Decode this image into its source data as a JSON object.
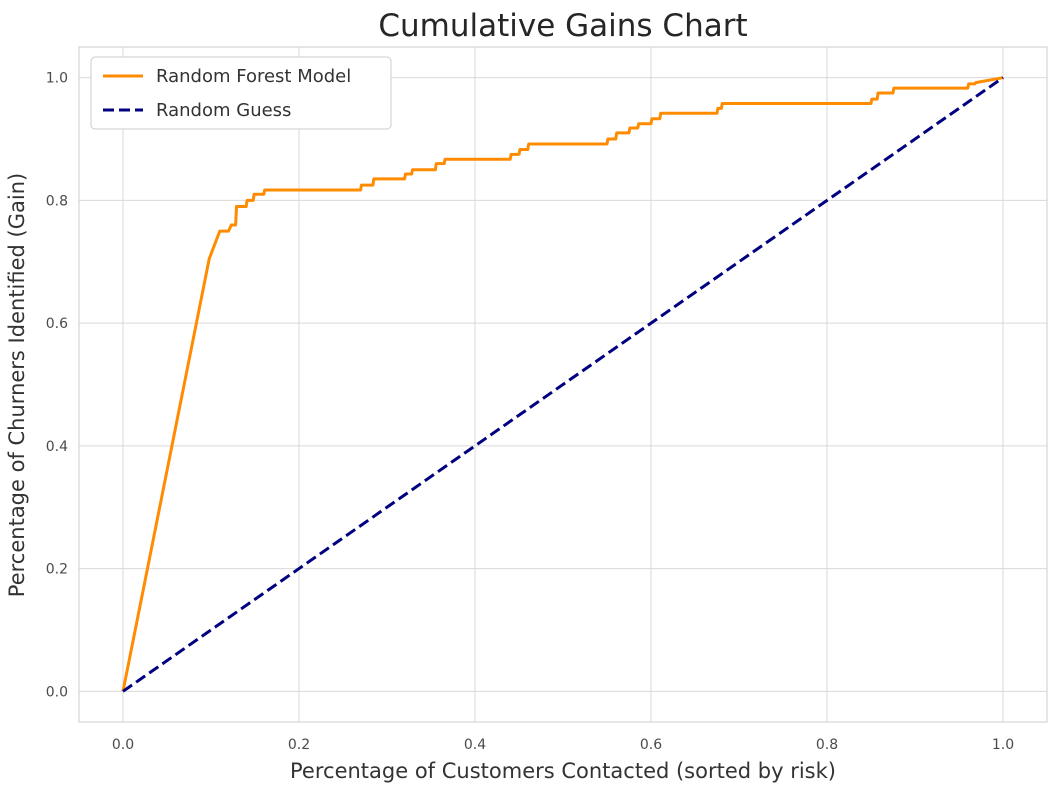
{
  "chart_data": {
    "type": "line",
    "title": "Cumulative Gains Chart",
    "xlabel": "Percentage of Customers Contacted (sorted by risk)",
    "ylabel": "Percentage of Churners Identified (Gain)",
    "xlim": [
      -0.05,
      1.05
    ],
    "ylim": [
      -0.05,
      1.05
    ],
    "xticks": [
      0.0,
      0.2,
      0.4,
      0.6,
      0.8,
      1.0
    ],
    "xtick_labels": [
      "0.0",
      "0.2",
      "0.4",
      "0.6",
      "0.8",
      "1.0"
    ],
    "yticks": [
      0.0,
      0.2,
      0.4,
      0.6,
      0.8,
      1.0
    ],
    "ytick_labels": [
      "0.0",
      "0.2",
      "0.4",
      "0.6",
      "0.8",
      "1.0"
    ],
    "grid": true,
    "legend_position": "top-left",
    "series": [
      {
        "name": "Random Forest Model",
        "color": "#ff8c00",
        "style": "solid",
        "x": [
          0.0,
          0.098,
          0.11,
          0.112,
          0.12,
          0.123,
          0.128,
          0.129,
          0.14,
          0.141,
          0.148,
          0.149,
          0.16,
          0.161,
          0.27,
          0.271,
          0.284,
          0.285,
          0.32,
          0.321,
          0.328,
          0.329,
          0.355,
          0.356,
          0.365,
          0.366,
          0.44,
          0.441,
          0.45,
          0.451,
          0.46,
          0.461,
          0.55,
          0.551,
          0.56,
          0.561,
          0.575,
          0.576,
          0.585,
          0.586,
          0.6,
          0.601,
          0.61,
          0.611,
          0.675,
          0.676,
          0.68,
          0.681,
          0.85,
          0.851,
          0.857,
          0.858,
          0.87,
          0.871,
          0.875,
          0.876,
          0.96,
          0.961,
          0.968,
          0.969,
          1.0
        ],
        "y": [
          0.0,
          0.705,
          0.75,
          0.75,
          0.75,
          0.76,
          0.76,
          0.79,
          0.79,
          0.8,
          0.8,
          0.81,
          0.81,
          0.817,
          0.817,
          0.825,
          0.825,
          0.835,
          0.835,
          0.843,
          0.843,
          0.85,
          0.85,
          0.86,
          0.86,
          0.867,
          0.867,
          0.875,
          0.875,
          0.883,
          0.883,
          0.892,
          0.892,
          0.9,
          0.9,
          0.91,
          0.91,
          0.918,
          0.918,
          0.925,
          0.925,
          0.933,
          0.933,
          0.942,
          0.942,
          0.95,
          0.95,
          0.958,
          0.958,
          0.965,
          0.965,
          0.975,
          0.975,
          0.975,
          0.975,
          0.983,
          0.983,
          0.99,
          0.99,
          0.992,
          1.0
        ]
      },
      {
        "name": "Random Guess",
        "color": "#000080",
        "style": "dashed",
        "x": [
          0.0,
          1.0
        ],
        "y": [
          0.0,
          1.0
        ]
      }
    ]
  }
}
